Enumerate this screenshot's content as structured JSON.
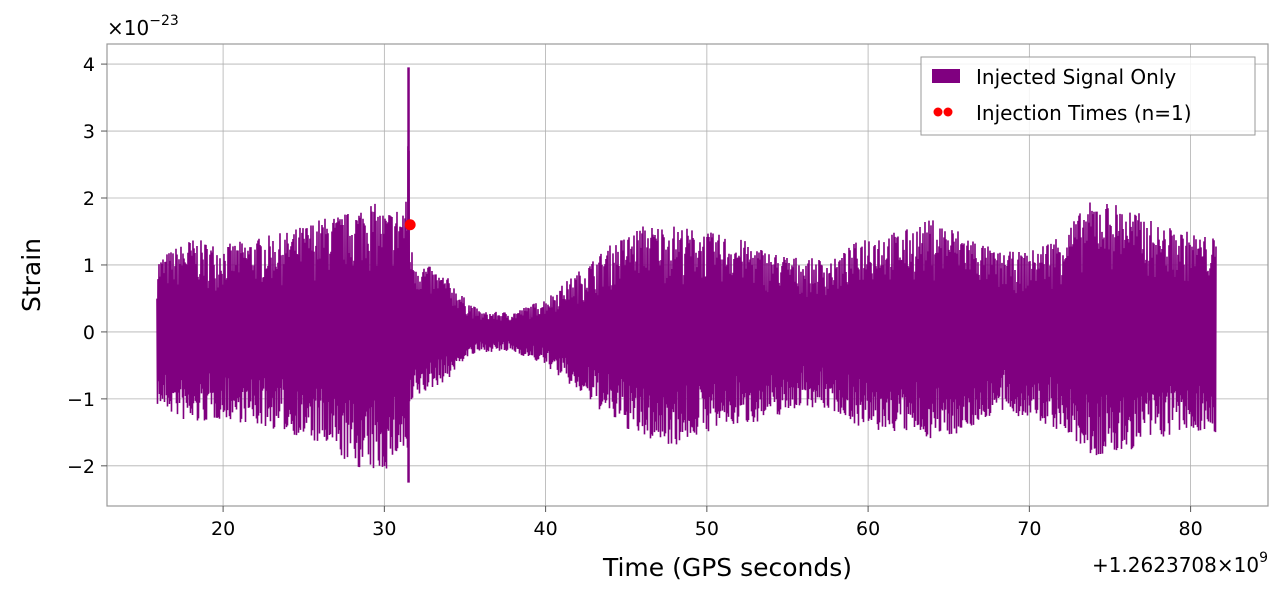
{
  "chart_data": {
    "type": "line",
    "xlabel": "Time (GPS seconds)",
    "ylabel": "Strain",
    "x_offset_label": "+1.2623708×10",
    "x_offset_exp": "9",
    "y_scale_label": "×10",
    "y_scale_exp": "−23",
    "xlim": [
      12.8,
      84.8
    ],
    "ylim": [
      -2.6,
      4.3
    ],
    "xticks": [
      20,
      30,
      40,
      50,
      60,
      70,
      80
    ],
    "xtick_labels": [
      "20",
      "30",
      "40",
      "50",
      "60",
      "70",
      "80"
    ],
    "yticks": [
      -2,
      -1,
      0,
      1,
      2,
      3,
      4
    ],
    "ytick_labels": [
      "−2",
      "−1",
      "0",
      "1",
      "2",
      "3",
      "4"
    ],
    "grid": true,
    "legend_position": "top-right",
    "series": [
      {
        "name": "Injected Signal Only",
        "color": "#800080",
        "x_range": [
          15.9,
          81.6
        ],
        "envelope": {
          "x": [
            15.9,
            18,
            20,
            22,
            24,
            26,
            28,
            29,
            30,
            31,
            31.4,
            31.5,
            31.6,
            32,
            34,
            35,
            36,
            38,
            40,
            42,
            44,
            46,
            48,
            50,
            52,
            54,
            56,
            58,
            60,
            62,
            64,
            66,
            68,
            70,
            72,
            74,
            76,
            78,
            80,
            81.6
          ],
          "upper": [
            1.1,
            1.4,
            1.3,
            1.4,
            1.5,
            1.7,
            1.8,
            2.0,
            1.8,
            1.9,
            2.0,
            3.95,
            1.3,
            1.1,
            0.8,
            0.5,
            0.3,
            0.3,
            0.5,
            0.9,
            1.3,
            1.6,
            1.6,
            1.5,
            1.4,
            1.2,
            1.1,
            1.1,
            1.5,
            1.5,
            1.7,
            1.5,
            1.2,
            1.2,
            1.5,
            2.0,
            1.9,
            1.6,
            1.5,
            1.4
          ],
          "lower": [
            -1.1,
            -1.4,
            -1.3,
            -1.4,
            -1.5,
            -1.7,
            -2.0,
            -2.1,
            -2.1,
            -1.8,
            -1.9,
            -2.25,
            -1.2,
            -1.0,
            -0.7,
            -0.4,
            -0.3,
            -0.3,
            -0.5,
            -0.9,
            -1.3,
            -1.6,
            -1.7,
            -1.5,
            -1.4,
            -1.3,
            -1.1,
            -1.2,
            -1.5,
            -1.5,
            -1.6,
            -1.5,
            -1.2,
            -1.3,
            -1.5,
            -1.9,
            -1.8,
            -1.6,
            -1.5,
            -1.5
          ]
        }
      },
      {
        "name": "Injection Times (n=1)",
        "color": "#ff0000",
        "type": "scatter",
        "points": [
          {
            "x": 31.6,
            "y": 1.6
          }
        ]
      }
    ]
  }
}
